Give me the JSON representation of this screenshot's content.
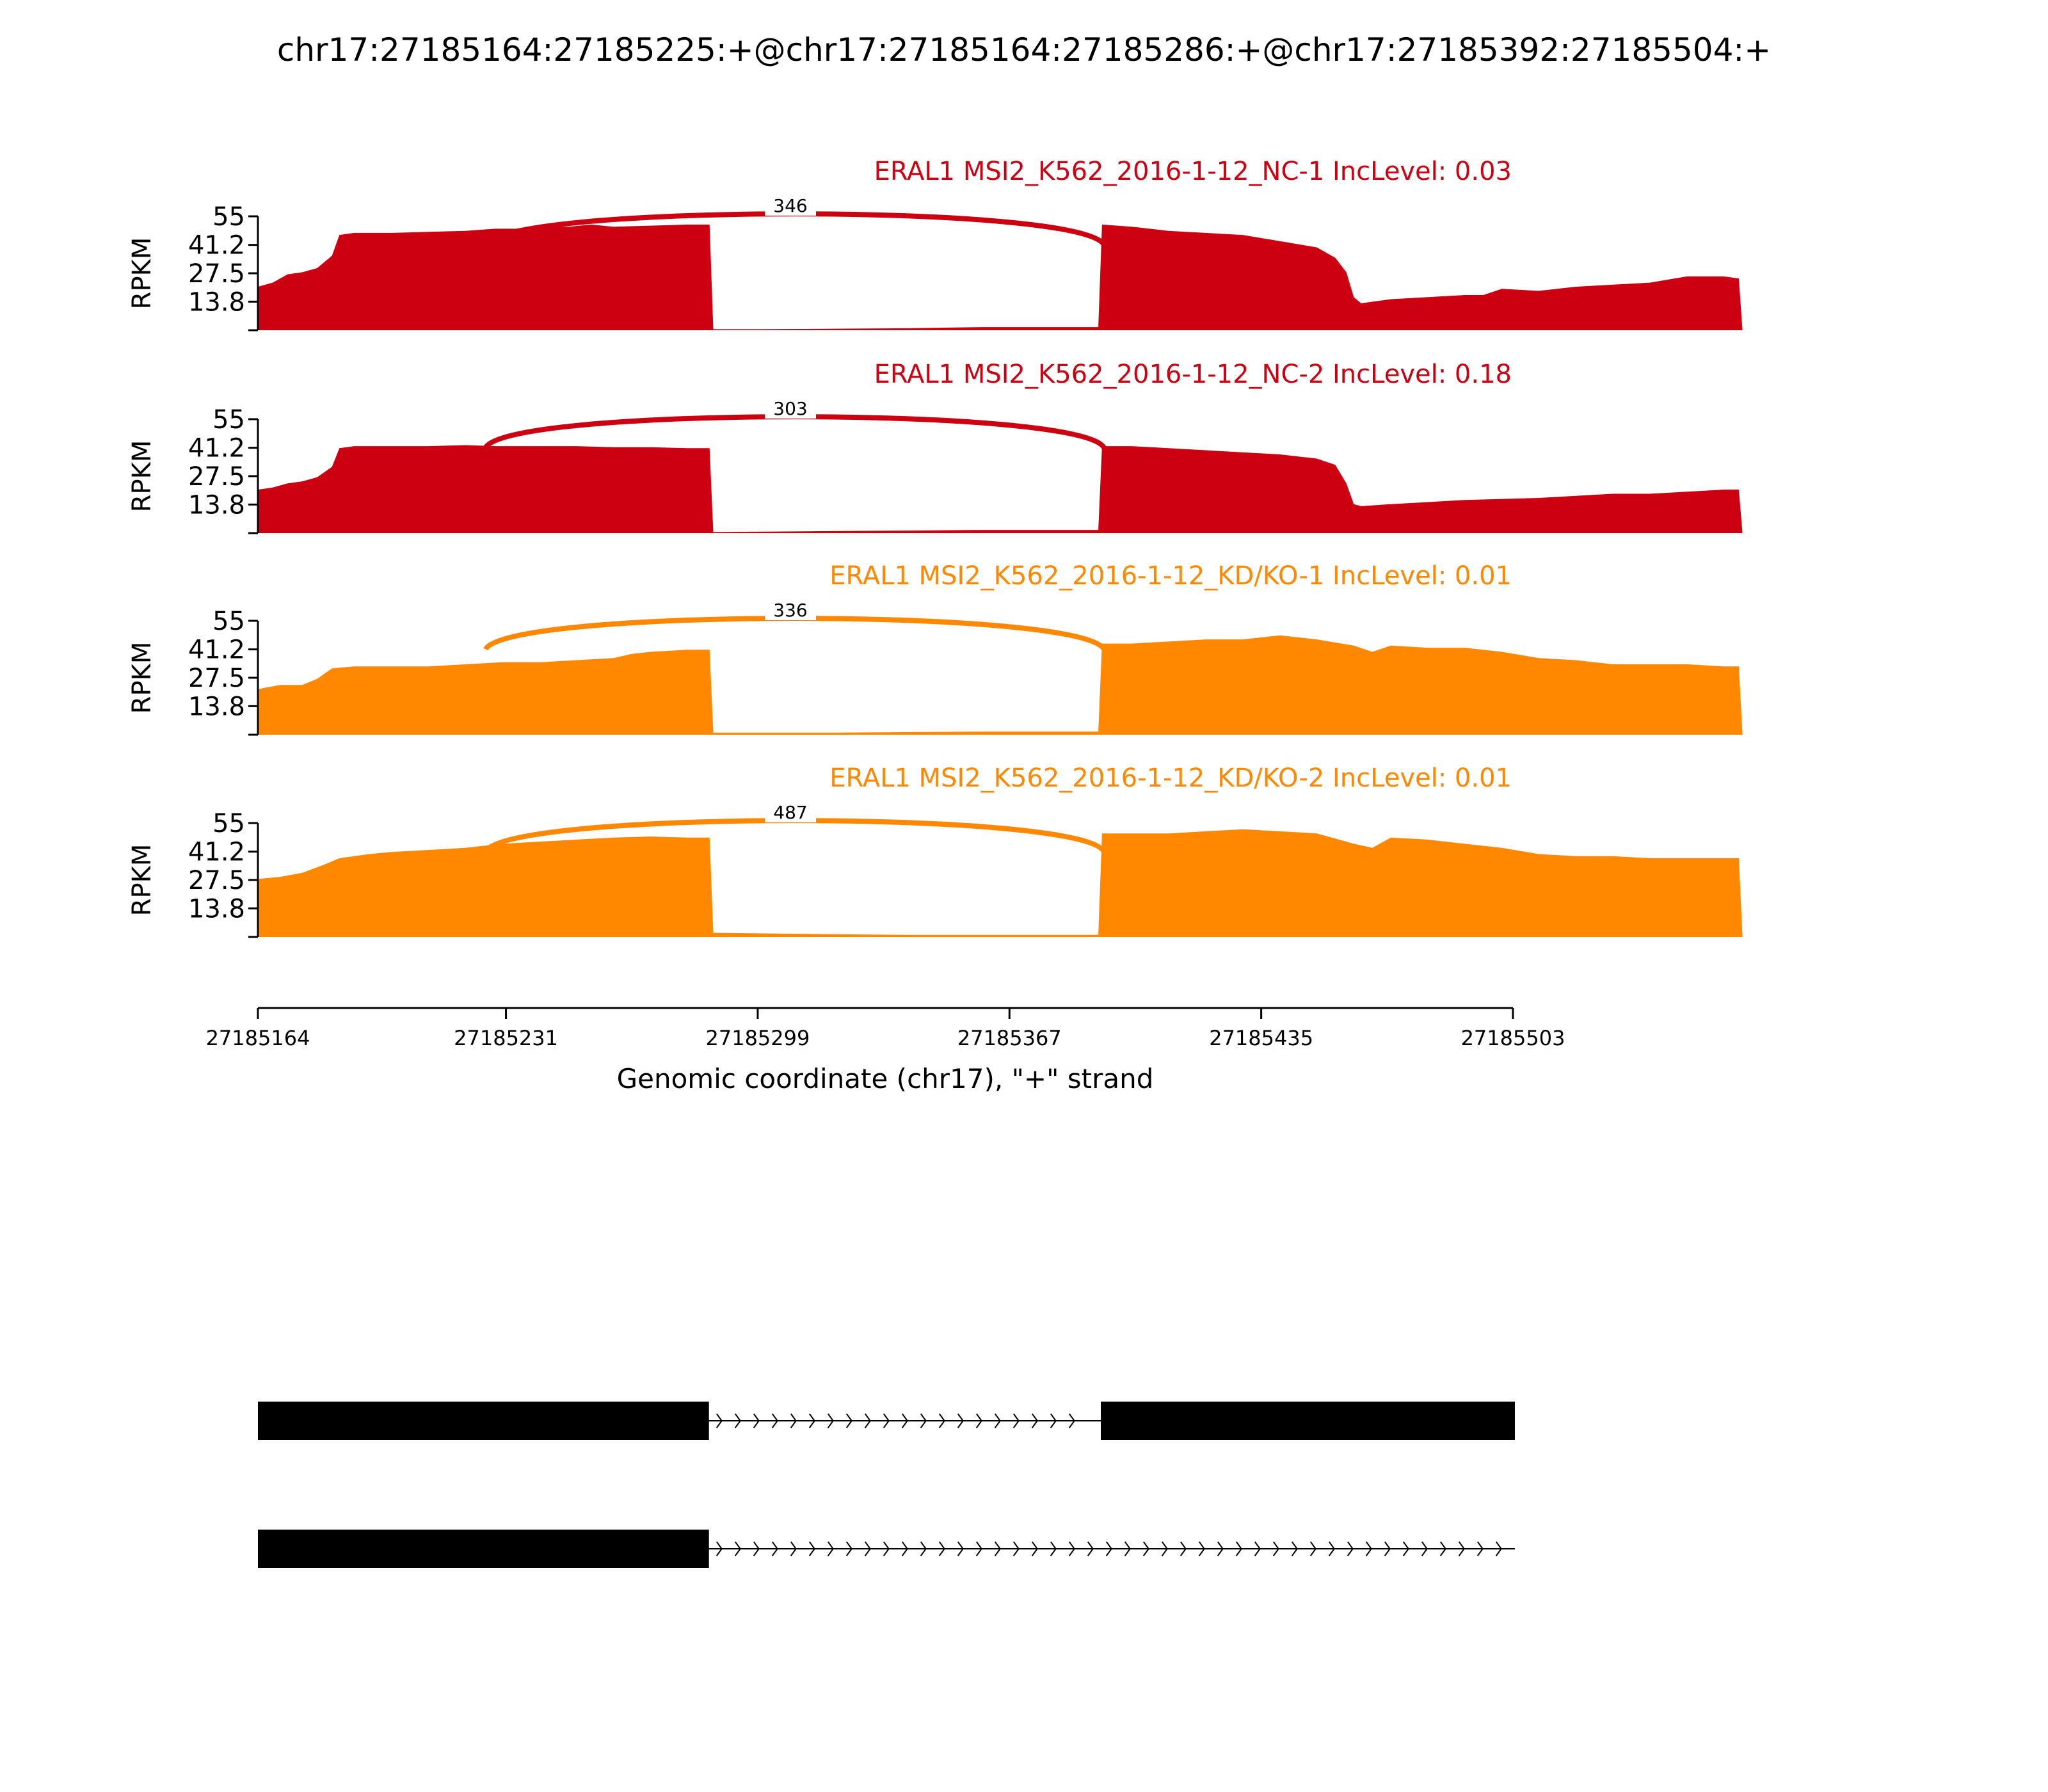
{
  "chart_data": {
    "type": "area",
    "title": "chr17:27185164:27185225:+@chr17:27185164:27185286:+@chr17:27185392:27185504:+",
    "xlabel": "Genomic coordinate (chr17), \"+\" strand",
    "xlim": [
      27185164,
      27185503
    ],
    "xticks": [
      27185164,
      27185231,
      27185299,
      27185367,
      27185435,
      27185503
    ],
    "xtick_labels": [
      "27185164",
      "27185231",
      "27185299",
      "27185367",
      "27185435",
      "27185503"
    ],
    "ylabel": "RPKM",
    "ylim": [
      0,
      55
    ],
    "yticks": [
      13.8,
      27.5,
      41.2,
      55
    ],
    "ytick_labels": [
      "13.8",
      "27.5",
      "41.2",
      "55"
    ],
    "grid": false,
    "series": [
      {
        "name": "ERAL1 MSI2_K562_2016-1-12_NC-1 IncLevel: 0.03",
        "color": "#CC0011",
        "junction": {
          "start": 27185225,
          "end": 27185392,
          "count": "346"
        },
        "coverage": [
          [
            27185164,
            21
          ],
          [
            27185168,
            23
          ],
          [
            27185172,
            27
          ],
          [
            27185176,
            28
          ],
          [
            27185180,
            30
          ],
          [
            27185184,
            36
          ],
          [
            27185186,
            46
          ],
          [
            27185190,
            47
          ],
          [
            27185200,
            47
          ],
          [
            27185210,
            47.5
          ],
          [
            27185220,
            48
          ],
          [
            27185228,
            49
          ],
          [
            27185235,
            49
          ],
          [
            27185240,
            50
          ],
          [
            27185248,
            50
          ],
          [
            27185254,
            51
          ],
          [
            27185260,
            50
          ],
          [
            27185270,
            50.5
          ],
          [
            27185280,
            51
          ],
          [
            27185286,
            51
          ],
          [
            27185287,
            0.5
          ],
          [
            27185300,
            0.5
          ],
          [
            27185340,
            1
          ],
          [
            27185360,
            1.5
          ],
          [
            27185391,
            1.5
          ],
          [
            27185392,
            51
          ],
          [
            27185400,
            50
          ],
          [
            27185410,
            48
          ],
          [
            27185420,
            47
          ],
          [
            27185430,
            46
          ],
          [
            27185440,
            43
          ],
          [
            27185450,
            40
          ],
          [
            27185455,
            35
          ],
          [
            27185458,
            28
          ],
          [
            27185460,
            16
          ],
          [
            27185462,
            13
          ],
          [
            27185470,
            15
          ],
          [
            27185480,
            16
          ],
          [
            27185490,
            17
          ],
          [
            27185495,
            17
          ],
          [
            27185500,
            20
          ],
          [
            27185510,
            19
          ],
          [
            27185520,
            21
          ],
          [
            27185530,
            22
          ],
          [
            27185540,
            23
          ],
          [
            27185550,
            26
          ],
          [
            27185560,
            26
          ],
          [
            27185564,
            25
          ],
          [
            27185565,
            0
          ]
        ]
      },
      {
        "name": "ERAL1 MSI2_K562_2016-1-12_NC-2 IncLevel: 0.18",
        "color": "#CC0011",
        "junction": {
          "start": 27185225,
          "end": 27185392,
          "count": "303"
        },
        "coverage": [
          [
            27185164,
            21
          ],
          [
            27185168,
            22
          ],
          [
            27185172,
            24
          ],
          [
            27185176,
            25
          ],
          [
            27185180,
            27
          ],
          [
            27185184,
            32
          ],
          [
            27185186,
            41
          ],
          [
            27185190,
            42
          ],
          [
            27185200,
            42
          ],
          [
            27185210,
            42
          ],
          [
            27185220,
            42.5
          ],
          [
            27185228,
            42
          ],
          [
            27185240,
            42
          ],
          [
            27185250,
            42
          ],
          [
            27185260,
            41.5
          ],
          [
            27185270,
            41.5
          ],
          [
            27185280,
            41
          ],
          [
            27185286,
            41
          ],
          [
            27185287,
            0.5
          ],
          [
            27185320,
            1
          ],
          [
            27185360,
            1.5
          ],
          [
            27185391,
            1.5
          ],
          [
            27185392,
            42
          ],
          [
            27185400,
            42
          ],
          [
            27185410,
            41
          ],
          [
            27185420,
            40
          ],
          [
            27185430,
            39
          ],
          [
            27185440,
            38
          ],
          [
            27185450,
            36
          ],
          [
            27185455,
            33
          ],
          [
            27185458,
            24
          ],
          [
            27185460,
            14
          ],
          [
            27185462,
            13
          ],
          [
            27185470,
            14
          ],
          [
            27185480,
            15
          ],
          [
            27185490,
            16
          ],
          [
            27185500,
            16.5
          ],
          [
            27185510,
            17
          ],
          [
            27185520,
            18
          ],
          [
            27185530,
            19
          ],
          [
            27185540,
            19
          ],
          [
            27185550,
            20
          ],
          [
            27185560,
            21
          ],
          [
            27185564,
            21
          ],
          [
            27185565,
            0
          ]
        ]
      },
      {
        "name": "ERAL1 MSI2_K562_2016-1-12_KD/KO-1 IncLevel: 0.01",
        "color": "#FF8800",
        "junction": {
          "start": 27185225,
          "end": 27185392,
          "count": "336"
        },
        "coverage": [
          [
            27185164,
            22
          ],
          [
            27185170,
            24
          ],
          [
            27185176,
            24
          ],
          [
            27185180,
            27
          ],
          [
            27185184,
            32
          ],
          [
            27185190,
            33
          ],
          [
            27185200,
            33
          ],
          [
            27185210,
            33
          ],
          [
            27185220,
            34
          ],
          [
            27185230,
            35
          ],
          [
            27185240,
            35
          ],
          [
            27185250,
            36
          ],
          [
            27185260,
            37
          ],
          [
            27185265,
            39
          ],
          [
            27185270,
            40
          ],
          [
            27185280,
            41
          ],
          [
            27185286,
            41
          ],
          [
            27185287,
            1
          ],
          [
            27185320,
            1
          ],
          [
            27185360,
            1.5
          ],
          [
            27185391,
            1.5
          ],
          [
            27185392,
            44
          ],
          [
            27185400,
            44
          ],
          [
            27185410,
            45
          ],
          [
            27185420,
            46
          ],
          [
            27185430,
            46
          ],
          [
            27185440,
            48
          ],
          [
            27185450,
            46
          ],
          [
            27185460,
            43
          ],
          [
            27185465,
            40
          ],
          [
            27185470,
            43
          ],
          [
            27185480,
            42
          ],
          [
            27185490,
            42
          ],
          [
            27185500,
            40
          ],
          [
            27185510,
            37
          ],
          [
            27185520,
            36
          ],
          [
            27185530,
            34
          ],
          [
            27185540,
            34
          ],
          [
            27185550,
            34
          ],
          [
            27185560,
            33
          ],
          [
            27185564,
            33
          ],
          [
            27185565,
            0
          ]
        ]
      },
      {
        "name": "ERAL1 MSI2_K562_2016-1-12_KD/KO-2 IncLevel: 0.01",
        "color": "#FF8800",
        "junction": {
          "start": 27185225,
          "end": 27185392,
          "count": "487"
        },
        "coverage": [
          [
            27185164,
            28
          ],
          [
            27185170,
            29
          ],
          [
            27185176,
            31
          ],
          [
            27185182,
            35
          ],
          [
            27185186,
            38
          ],
          [
            27185194,
            40
          ],
          [
            27185200,
            41
          ],
          [
            27185210,
            42
          ],
          [
            27185220,
            43
          ],
          [
            27185230,
            45
          ],
          [
            27185240,
            46
          ],
          [
            27185250,
            47
          ],
          [
            27185260,
            48
          ],
          [
            27185270,
            48.5
          ],
          [
            27185280,
            48
          ],
          [
            27185286,
            48
          ],
          [
            27185287,
            2
          ],
          [
            27185310,
            1.5
          ],
          [
            27185340,
            1
          ],
          [
            27185391,
            1
          ],
          [
            27185392,
            50
          ],
          [
            27185400,
            50
          ],
          [
            27185410,
            50
          ],
          [
            27185420,
            51
          ],
          [
            27185430,
            52
          ],
          [
            27185440,
            51
          ],
          [
            27185450,
            50
          ],
          [
            27185460,
            45
          ],
          [
            27185465,
            43
          ],
          [
            27185470,
            48
          ],
          [
            27185480,
            47
          ],
          [
            27185490,
            45
          ],
          [
            27185500,
            43
          ],
          [
            27185510,
            40
          ],
          [
            27185520,
            39
          ],
          [
            27185530,
            39
          ],
          [
            27185540,
            38
          ],
          [
            27185550,
            38
          ],
          [
            27185560,
            38
          ],
          [
            27185564,
            38
          ],
          [
            27185565,
            0
          ]
        ]
      }
    ],
    "transcripts": [
      {
        "exons": [
          [
            27185164,
            27185286
          ],
          [
            27185392,
            27185504
          ]
        ],
        "intron": [
          27185286,
          27185392
        ]
      },
      {
        "exons": [
          [
            27185164,
            27185286
          ]
        ],
        "intron": [
          27185286,
          27185504
        ]
      }
    ]
  }
}
